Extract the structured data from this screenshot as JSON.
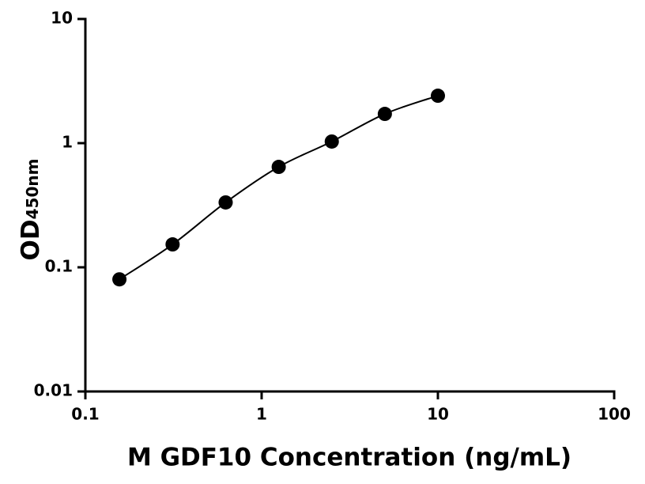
{
  "chart_data": {
    "type": "scatter",
    "x_label": "M GDF10 Concentration (ng/mL)",
    "y_label": "OD",
    "y_label_sub": "450nm",
    "x": [
      0.156,
      0.3125,
      0.625,
      1.25,
      2.5,
      5,
      10
    ],
    "series": [
      {
        "color": "#000000",
        "values": [
          0.08,
          0.153,
          0.333,
          0.644,
          1.03,
          1.72,
          2.41
        ]
      }
    ],
    "xlim": [
      0.1,
      100
    ],
    "xticks": [
      0.1,
      1,
      10,
      100
    ],
    "ylim": [
      0.01,
      10
    ],
    "yticks": [
      0.01,
      0.1,
      1,
      10
    ],
    "log_x": true,
    "log_y": true,
    "fit_curve": true
  }
}
